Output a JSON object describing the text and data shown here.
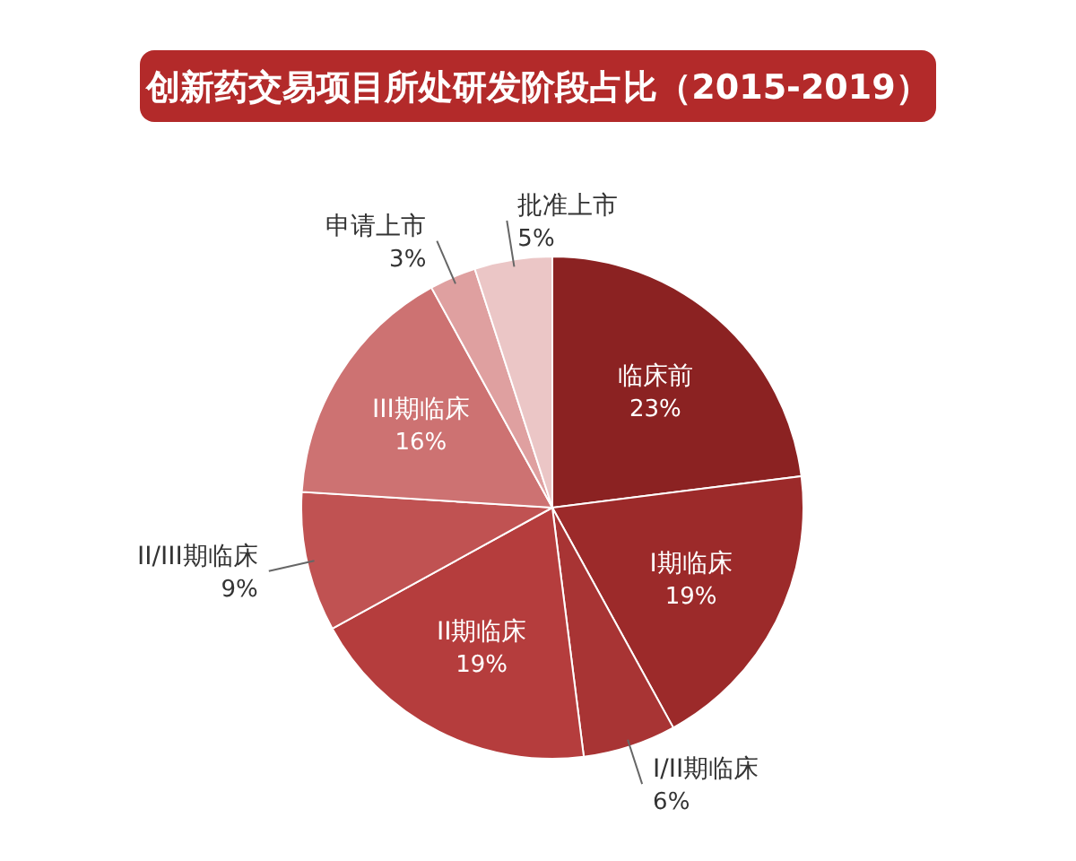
{
  "chart_data": {
    "type": "pie",
    "title": "创新药交易项目所处研发阶段占比（2015-2019）",
    "categories": [
      "临床前",
      "I期临床",
      "I/II期临床",
      "II期临床",
      "II/III期临床",
      "III期临床",
      "申请上市",
      "批准上市"
    ],
    "values": [
      23,
      19,
      6,
      19,
      9,
      16,
      3,
      5
    ],
    "value_labels": [
      "23%",
      "19%",
      "6%",
      "19%",
      "9%",
      "16%",
      "3%",
      "5%"
    ],
    "colors": [
      "#8b2222",
      "#9c2a2a",
      "#a83434",
      "#b53d3d",
      "#c05252",
      "#cd7272",
      "#dfa0a0",
      "#ebc6c6"
    ]
  }
}
